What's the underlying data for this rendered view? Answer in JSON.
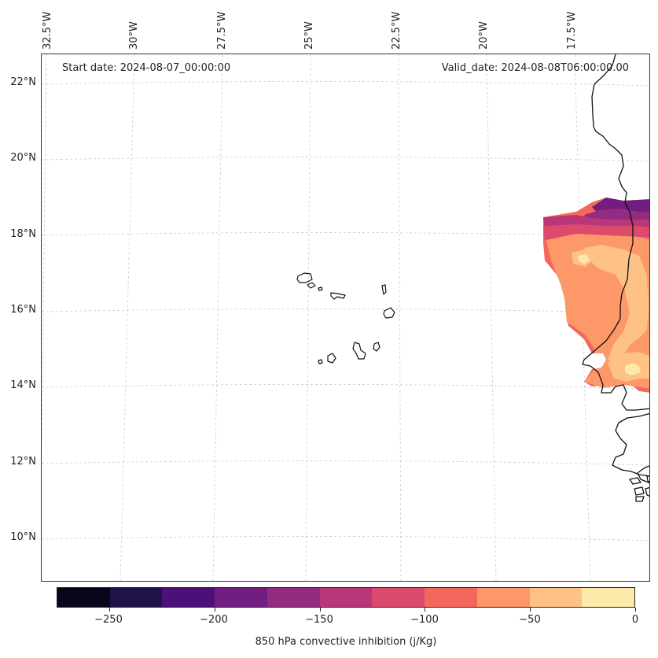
{
  "map": {
    "start_date": "Start date: 2024-08-07_00:00:00",
    "valid_date": "Valid_date: 2024-08-08T06:00:00.00",
    "lon_labels": [
      "32.5°W",
      "30°W",
      "27.5°W",
      "25°W",
      "22.5°W",
      "20°W",
      "17.5°W"
    ],
    "lat_labels": [
      "22°N",
      "20°N",
      "18°N",
      "16°N",
      "14°N",
      "12°N",
      "10°N"
    ],
    "features": [
      "Cape Verde islands",
      "West African coastline (Mauritania, Senegal, Gambia, Guinea-Bissau)"
    ]
  },
  "colorbar": {
    "title": "850 hPa convective inhibition (j/Kg)",
    "tick_labels": [
      "−250",
      "−200",
      "−150",
      "−100",
      "−50",
      "0"
    ],
    "levels": [
      -275,
      -250,
      -225,
      -200,
      -175,
      -150,
      -125,
      -100,
      -75,
      -50,
      -25,
      0
    ],
    "colors": [
      "#07061b",
      "#21124a",
      "#4c1078",
      "#721e81",
      "#932b80",
      "#b73779",
      "#dc4a6c",
      "#f3675c",
      "#fd9869",
      "#fec287",
      "#fde9a9"
    ]
  },
  "colors": {
    "coastline": "#111111",
    "gridline": "#cccccc"
  }
}
